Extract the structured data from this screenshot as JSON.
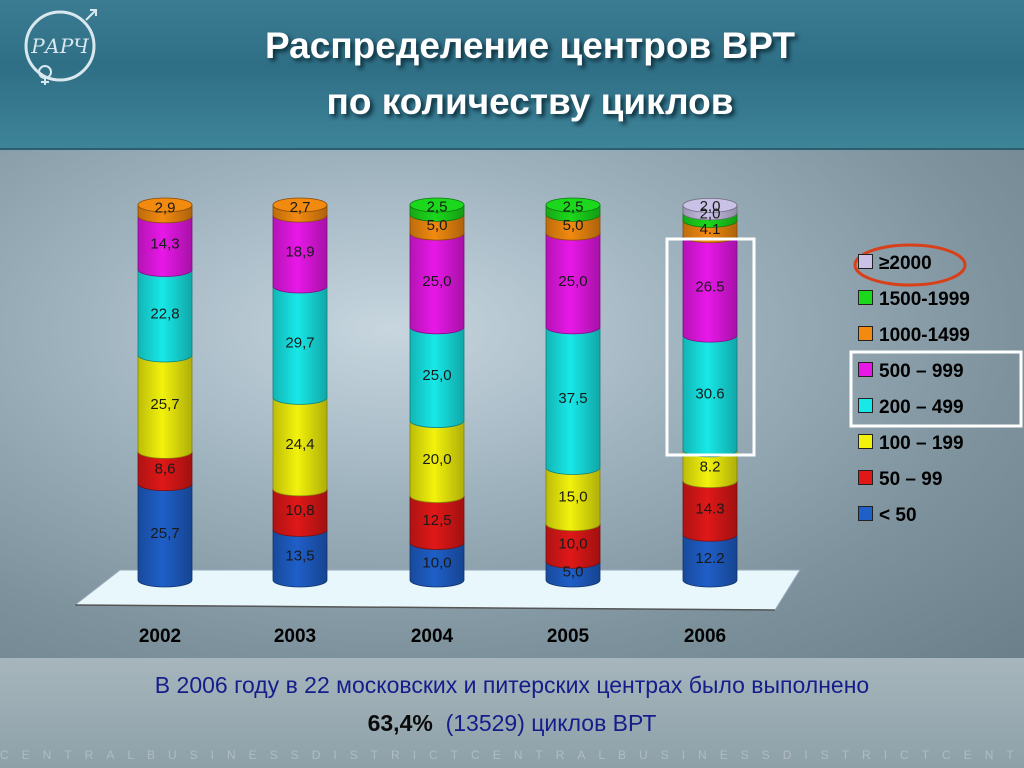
{
  "header": {
    "title_line1": "Распределение центров ВРТ",
    "title_line2": "по количеству циклов",
    "logo_text": "РАРЧ"
  },
  "caption": {
    "line1": "В 2006 году в 22 московских и питерских центрах было выполнено",
    "line2_number": "63,4%",
    "line2_rest": "(13529) циклов ВРТ"
  },
  "footer_text": "CENTRALBUSINESSDISTRICTCENTRALBUSINESSDISTRICTCENTRAL",
  "colors": {
    "<50": "#1f5fc8",
    "50-99": "#e01818",
    "100-199": "#f2f20c",
    "200-499": "#18e8e8",
    "500-999": "#e818e8",
    "1000-1499": "#f28a10",
    "1500-1999": "#1cd81c",
    "2000+": "#c9c2e6"
  },
  "chart_data": {
    "type": "bar",
    "stacked": true,
    "categories": [
      "2002",
      "2003",
      "2004",
      "2005",
      "2006"
    ],
    "series": [
      {
        "name": "< 50",
        "key": "<50",
        "values": [
          25.7,
          13.5,
          10.0,
          5.0,
          12.2
        ],
        "labels": [
          "25,7",
          "13,5",
          "10,0",
          "5,0",
          "12.2"
        ]
      },
      {
        "name": "50 – 99",
        "key": "50-99",
        "values": [
          8.6,
          10.8,
          12.5,
          10.0,
          14.3
        ],
        "labels": [
          "8,6",
          "10,8",
          "12,5",
          "10,0",
          "14.3"
        ]
      },
      {
        "name": "100 – 199",
        "key": "100-199",
        "values": [
          25.7,
          24.4,
          20.0,
          15.0,
          8.2
        ],
        "labels": [
          "25,7",
          "24,4",
          "20,0",
          "15,0",
          "8.2"
        ]
      },
      {
        "name": "200 – 499",
        "key": "200-499",
        "values": [
          22.8,
          29.7,
          25.0,
          37.5,
          30.6
        ],
        "labels": [
          "22,8",
          "29,7",
          "25,0",
          "37,5",
          "30.6"
        ]
      },
      {
        "name": "500 – 999",
        "key": "500-999",
        "values": [
          14.3,
          18.9,
          25.0,
          25.0,
          26.5
        ],
        "labels": [
          "14,3",
          "18,9",
          "25,0",
          "25,0",
          "26.5"
        ]
      },
      {
        "name": "1000-1499",
        "key": "1000-1499",
        "values": [
          2.9,
          2.7,
          5.0,
          5.0,
          4.1
        ],
        "labels": [
          "2,9",
          "2,7",
          "5,0",
          "5,0",
          "4.1"
        ]
      },
      {
        "name": "1500-1999",
        "key": "1500-1999",
        "values": [
          0,
          0,
          2.5,
          2.5,
          2.0
        ],
        "labels": [
          "",
          "",
          "2,5",
          "2,5",
          "2,0"
        ]
      },
      {
        "name": "≥2000",
        "key": "2000+",
        "values": [
          0,
          0,
          0,
          0,
          2.0
        ],
        "labels": [
          "",
          "",
          "",
          "",
          "2,0"
        ]
      }
    ],
    "legend_order": [
      "2000+",
      "1500-1999",
      "1000-1499",
      "500-999",
      "200-499",
      "100-199",
      "50-99",
      "<50"
    ],
    "legend_position": "right",
    "highlight_category": "2006",
    "highlight_legend": [
      "500-999",
      "200-499"
    ],
    "circled_legend": "2000+",
    "ylim": [
      0,
      100
    ]
  }
}
